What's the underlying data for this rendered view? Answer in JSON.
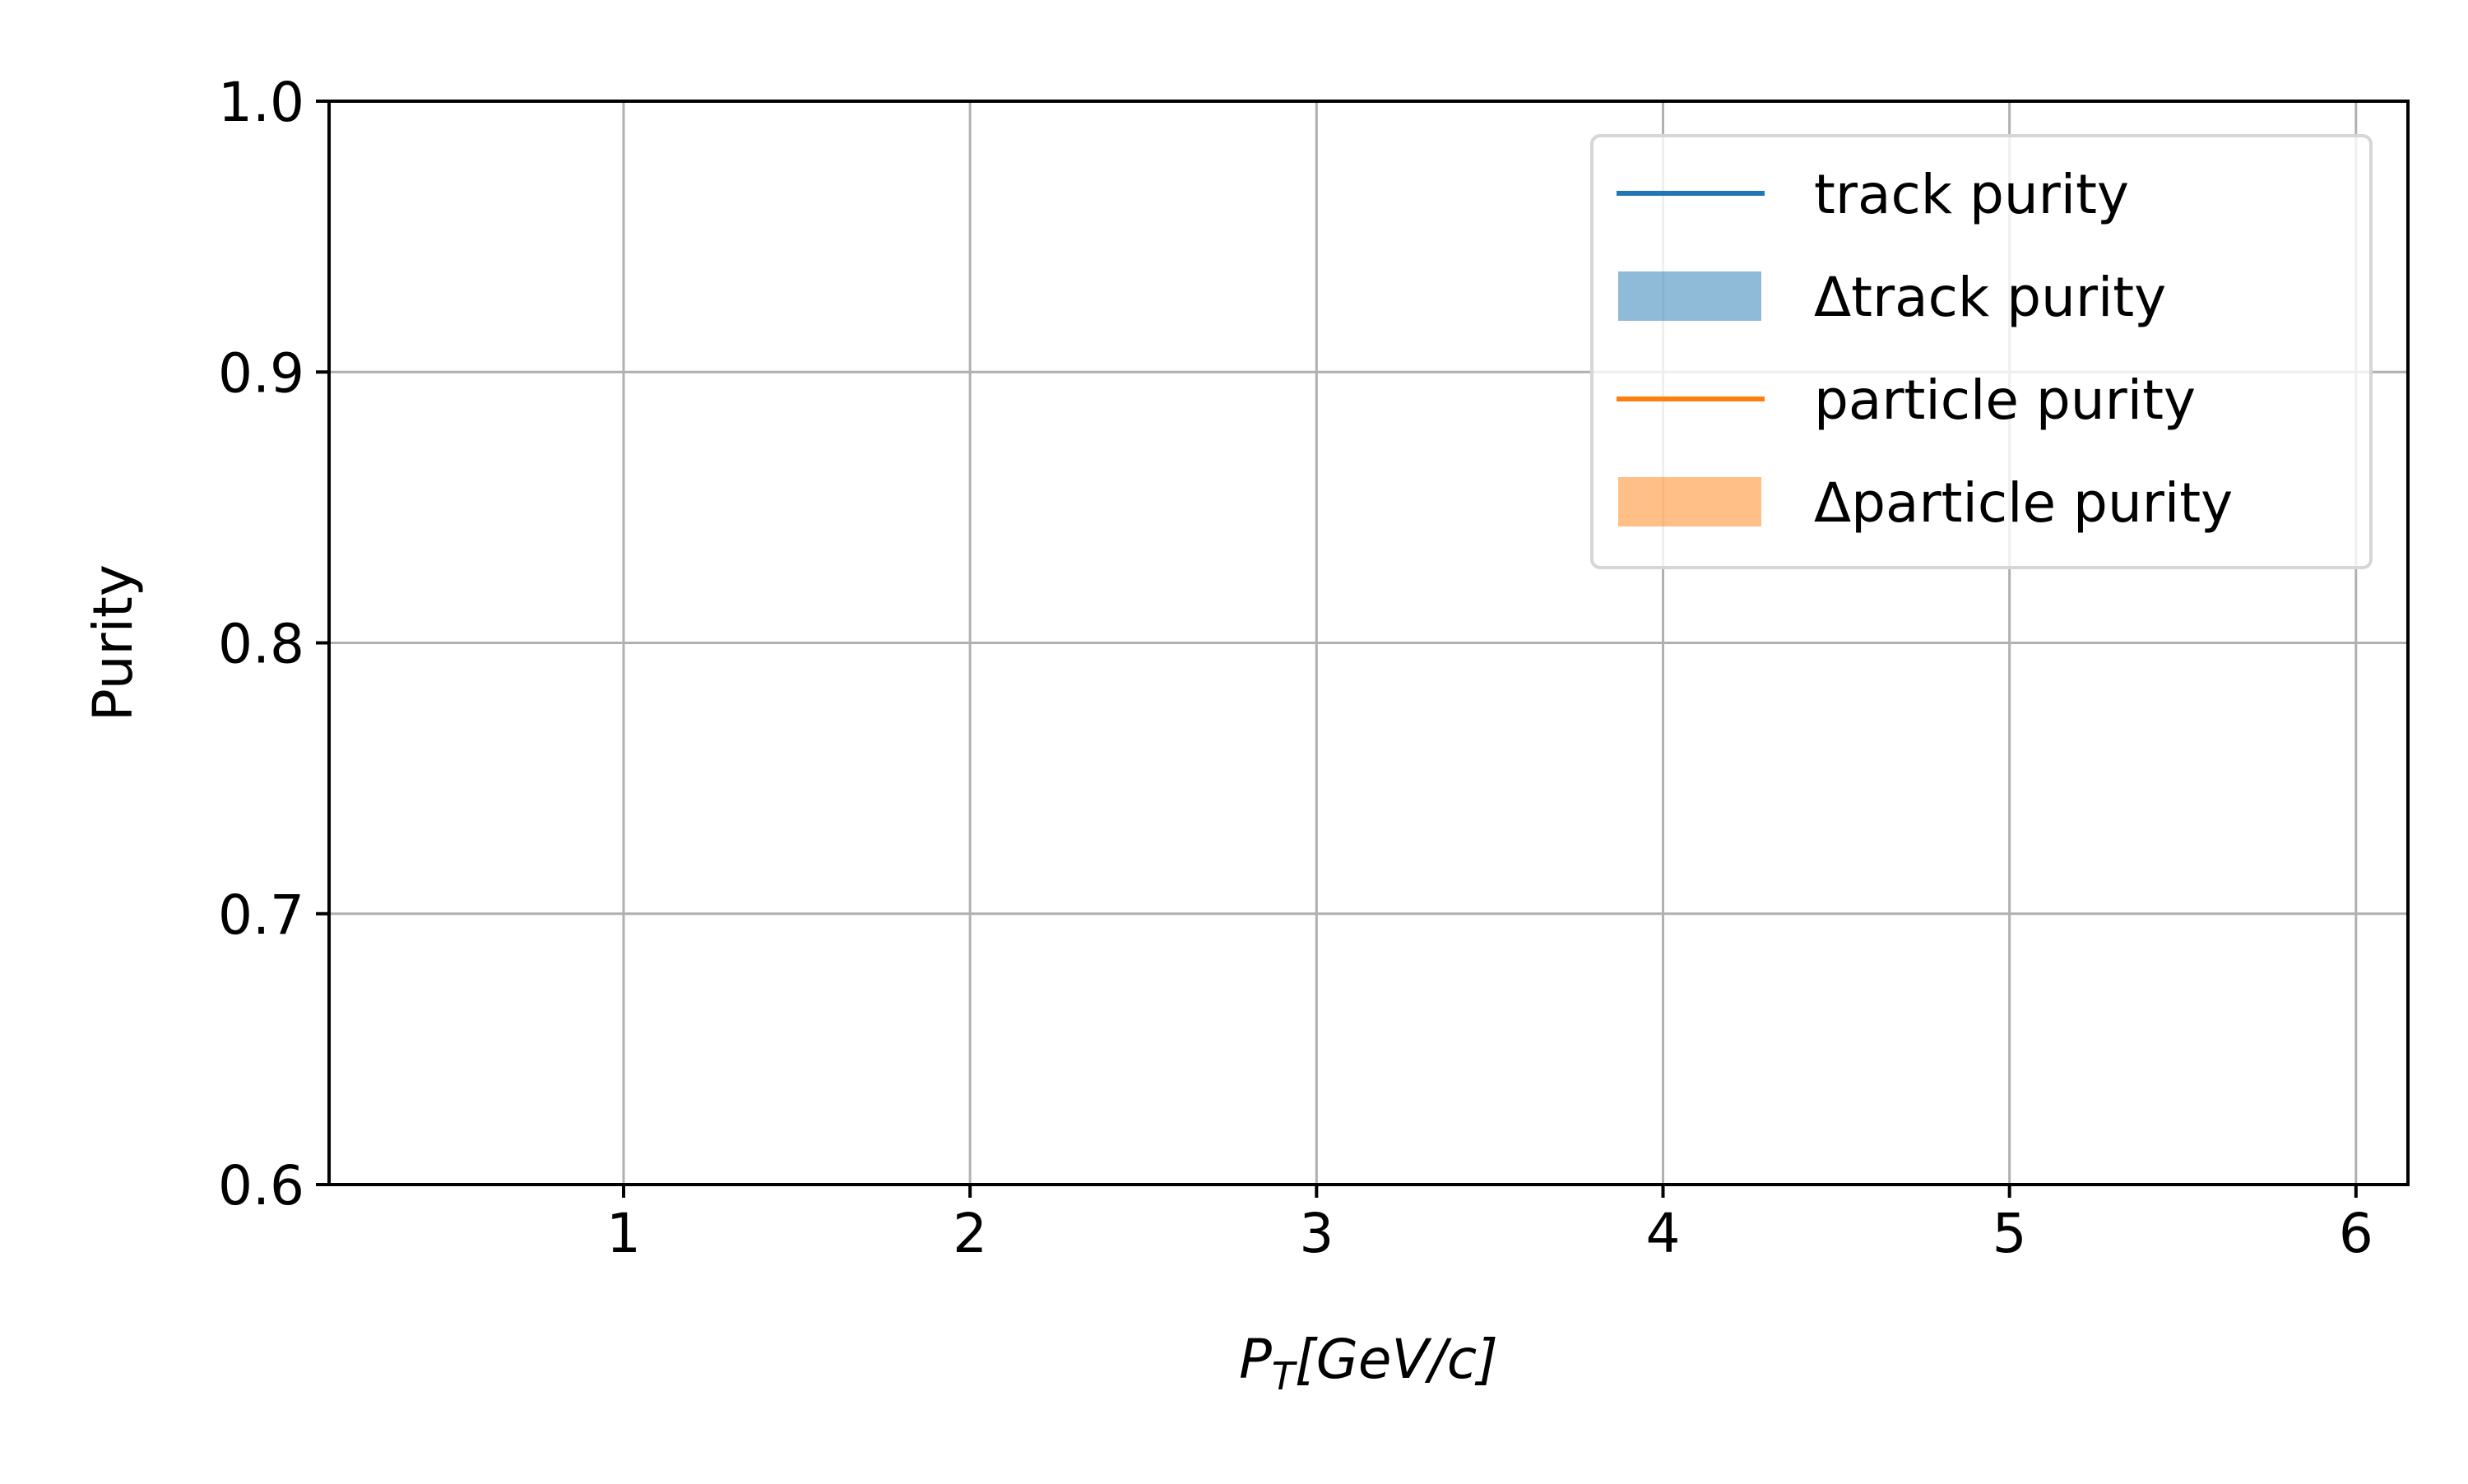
{
  "chart_data": {
    "type": "line",
    "title": "",
    "xlabel": {
      "main": "P",
      "sub": "T",
      "rest": "[GeV/c]"
    },
    "ylabel": "Purity",
    "xlim": [
      0.15,
      6.15
    ],
    "ylim": [
      0.6,
      1.0
    ],
    "xticks": [
      1,
      2,
      3,
      4,
      5,
      6
    ],
    "xtick_labels": [
      "1",
      "2",
      "3",
      "4",
      "5",
      "6"
    ],
    "yticks": [
      0.6,
      0.7,
      0.8,
      0.9,
      1.0
    ],
    "ytick_labels": [
      "0.6",
      "0.7",
      "0.8",
      "0.9",
      "1.0"
    ],
    "grid": true,
    "legend_position": "top-right",
    "series": [
      {
        "name": "track purity",
        "kind": "line",
        "color": "#1f77b4",
        "x": [],
        "y": []
      },
      {
        "name": "Δtrack purity",
        "kind": "band",
        "color": "#1f77b4",
        "x": [],
        "y_low": [],
        "y_high": []
      },
      {
        "name": "particle purity",
        "kind": "line",
        "color": "#ff7f0e",
        "x": [],
        "y": []
      },
      {
        "name": "Δparticle purity",
        "kind": "band",
        "color": "#ff7f0e",
        "x": [],
        "y_low": [],
        "y_high": []
      }
    ]
  }
}
